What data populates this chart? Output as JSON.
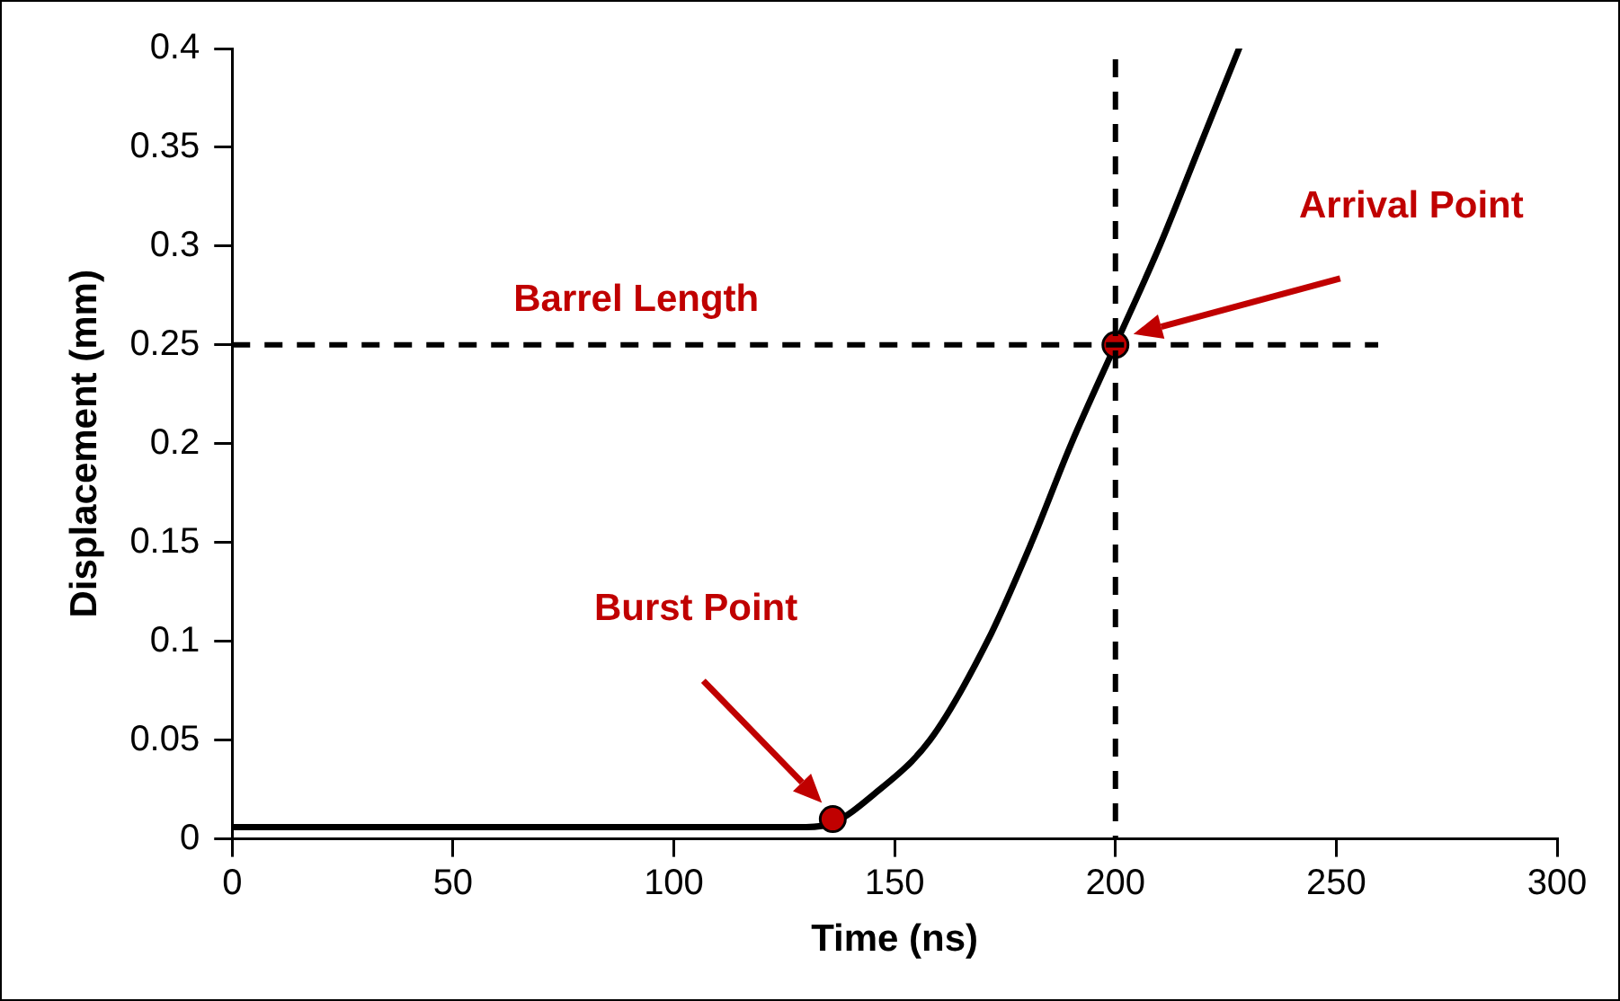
{
  "chart_data": {
    "type": "line",
    "xlabel": "Time (ns)",
    "ylabel": "Displacement (mm)",
    "xlim": [
      0,
      300
    ],
    "xticks": [
      0,
      50,
      100,
      150,
      200,
      250,
      300
    ],
    "ylim": [
      0,
      0.4
    ],
    "yticks": [
      0,
      0.05,
      0.1,
      0.15,
      0.2,
      0.25,
      0.3,
      0.35,
      0.4
    ],
    "grid": false,
    "legend": false,
    "marker": "none",
    "line_style": "solid",
    "series": [
      {
        "color": "#000000",
        "x": [
          0,
          50,
          100,
          130,
          136,
          145,
          158,
          171,
          181,
          190,
          200,
          210,
          219,
          228
        ],
        "values": [
          0.006,
          0.006,
          0.006,
          0.006,
          0.008,
          0.022,
          0.05,
          0.1,
          0.15,
          0.2,
          0.25,
          0.3,
          0.35,
          0.4
        ]
      },
      {
        "type": "scatter",
        "color": "#c00000",
        "marker": "circle",
        "x": [
          136,
          200
        ],
        "values": [
          0.01,
          0.25
        ]
      }
    ],
    "ref_lines": [
      {
        "axis": "y",
        "value": 0.25,
        "label": "Barrel Length",
        "color": "#000000",
        "line_style": "dashed"
      },
      {
        "axis": "x",
        "value": 200,
        "label": null,
        "color": "#000000",
        "line_style": "dashed"
      }
    ],
    "annotations": [
      "Burst Point",
      "Arrival Point"
    ]
  }
}
